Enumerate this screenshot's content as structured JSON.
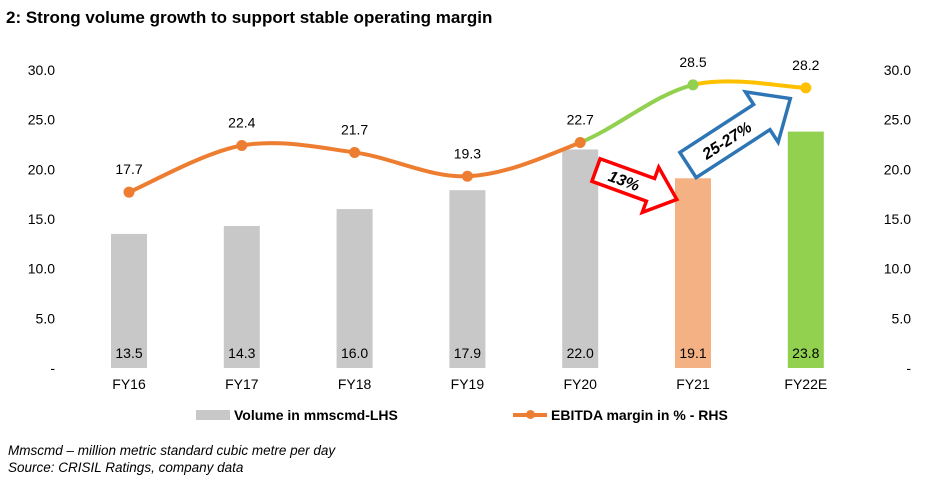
{
  "title": "2: Strong volume growth to support stable operating margin",
  "chart_data": {
    "type": "bar+line",
    "categories": [
      "FY16",
      "FY17",
      "FY18",
      "FY19",
      "FY20",
      "FY21",
      "FY22E"
    ],
    "series": [
      {
        "name": "Volume in mmscmd-LHS",
        "type": "bar",
        "axis": "left",
        "values": [
          13.5,
          14.3,
          16.0,
          17.9,
          22.0,
          19.1,
          23.8
        ],
        "colors": [
          "#c8c8c8",
          "#c8c8c8",
          "#c8c8c8",
          "#c8c8c8",
          "#c8c8c8",
          "#f4b183",
          "#92d050"
        ]
      },
      {
        "name": "EBITDA margin in % - RHS",
        "type": "line",
        "axis": "right",
        "values": [
          17.7,
          22.4,
          21.7,
          19.3,
          22.7,
          28.5,
          28.2
        ],
        "color": "#ed7d31",
        "segment_colors": [
          "#ed7d31",
          "#ed7d31",
          "#ed7d31",
          "#ed7d31",
          "#92d050",
          "#ffc000"
        ]
      }
    ],
    "left_axis": {
      "ylim": [
        0,
        30
      ],
      "ticks": [
        "-",
        "5.0",
        "10.0",
        "15.0",
        "20.0",
        "25.0",
        "30.0"
      ]
    },
    "right_axis": {
      "ylim": [
        0,
        30
      ],
      "ticks": [
        "-",
        "5.0",
        "10.0",
        "15.0",
        "20.0",
        "25.0",
        "30.0"
      ]
    },
    "annotations": [
      {
        "text": "13%",
        "color": "#ff0000"
      },
      {
        "text": "25-27%",
        "color": "#2e75b6"
      }
    ],
    "legend_placement": "bottom",
    "grid": false
  },
  "notes": [
    "Mmscmd – million metric standard cubic metre per day",
    "Source: CRISIL Ratings, company data"
  ]
}
